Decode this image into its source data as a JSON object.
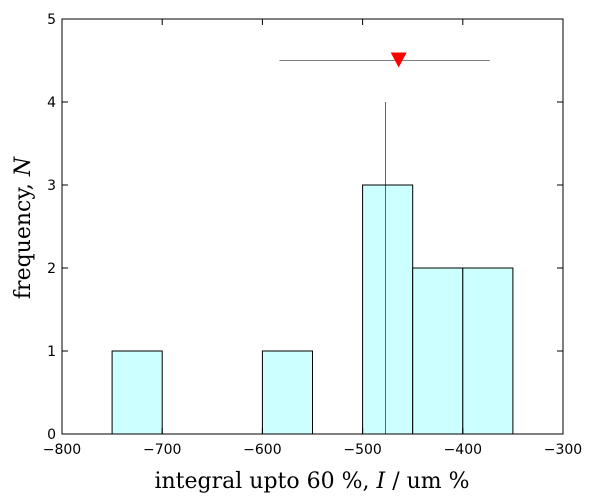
{
  "chart_data": {
    "type": "bar",
    "xlabel_prefix": "integral upto 60 %, ",
    "xlabel_symbol": "I",
    "xlabel_suffix": " / um %",
    "ylabel_prefix": "frequency, ",
    "ylabel_symbol": "N",
    "xlim": [
      -800,
      -300
    ],
    "ylim": [
      0,
      5
    ],
    "x_ticks": [
      -800,
      -700,
      -600,
      -500,
      -400,
      -300
    ],
    "x_tick_labels": [
      "−800",
      "−700",
      "−600",
      "−500",
      "−400",
      "−300"
    ],
    "y_ticks": [
      0,
      1,
      2,
      3,
      4,
      5
    ],
    "y_tick_labels": [
      "0",
      "1",
      "2",
      "3",
      "4",
      "5"
    ],
    "bins": [
      {
        "x_start": -750,
        "x_end": -700,
        "count": 1
      },
      {
        "x_start": -600,
        "x_end": -550,
        "count": 1
      },
      {
        "x_start": -500,
        "x_end": -450,
        "count": 3
      },
      {
        "x_start": -450,
        "x_end": -400,
        "count": 2
      },
      {
        "x_start": -400,
        "x_end": -350,
        "count": 2
      }
    ],
    "vertical_line": {
      "x": -477,
      "y_top": 4
    },
    "marker": {
      "x": -464,
      "y": 4.5,
      "x_err_low": -583,
      "x_err_high": -373,
      "shape": "down-triangle"
    },
    "bar_fill": "#ccffff",
    "bar_stroke": "#000000",
    "marker_color": "#ff0000",
    "grid": false
  }
}
